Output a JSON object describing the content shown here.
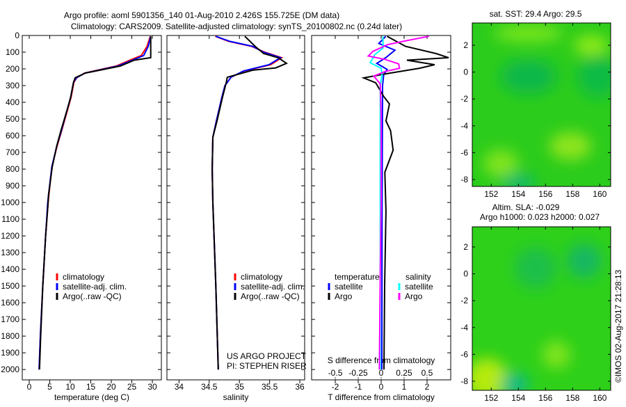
{
  "title": {
    "line1": "Argo profile: aoml 5901356_140 01-Aug-2010 2.426S 155.725E (DM data)",
    "line2": "Climatology: CARS2009. Satellite-adjusted climatology: synTS_20100802.nc (0.24d later)"
  },
  "colors": {
    "climatology": "#ff0000",
    "satellite": "#0000ff",
    "argo": "#000000",
    "sal_satellite": "#00ffff",
    "sal_argo": "#ff00ff"
  },
  "depth_ticks": [
    "0",
    "100",
    "200",
    "300",
    "400",
    "500",
    "600",
    "700",
    "800",
    "900",
    "1000",
    "1100",
    "1200",
    "1300",
    "1400",
    "1500",
    "1600",
    "1700",
    "1800",
    "1900",
    "2000"
  ],
  "chart_data": [
    {
      "type": "line",
      "xlabel": "temperature (deg C)",
      "ylabel": "depth",
      "xlim": [
        -1.7,
        32.2
      ],
      "ylim": [
        2062,
        0
      ],
      "xticks": [
        "0",
        "5",
        "10",
        "15",
        "20",
        "25",
        "30"
      ],
      "xtick_values": [
        0,
        5,
        10,
        15,
        20,
        25,
        30
      ],
      "legend": [
        "climatology",
        "satellite-adj. clim.",
        "Argo(..raw -QC)"
      ],
      "series": [
        {
          "name": "climatology",
          "color": "#ff0000",
          "points": [
            [
              5,
              29.5
            ],
            [
              65,
              28.7
            ],
            [
              120,
              27.3
            ],
            [
              148,
              24.5
            ],
            [
              183,
              21.2
            ],
            [
              225,
              13.5
            ],
            [
              253,
              11.6
            ],
            [
              280,
              10.9
            ],
            [
              370,
              10.2
            ],
            [
              440,
              9.4
            ],
            [
              580,
              7.8
            ],
            [
              662,
              6.8
            ],
            [
              787,
              5.5
            ],
            [
              954,
              4.8
            ],
            [
              1000,
              4.6
            ],
            [
              1200,
              4.0
            ],
            [
              1500,
              3.3
            ],
            [
              1800,
              2.7
            ],
            [
              2000,
              2.4
            ]
          ]
        },
        {
          "name": "satellite-adj. clim.",
          "color": "#0000ff",
          "points": [
            [
              5,
              29.6
            ],
            [
              65,
              29.0
            ],
            [
              120,
              27.9
            ],
            [
              148,
              25.1
            ],
            [
              183,
              21.6
            ],
            [
              225,
              13.6
            ],
            [
              253,
              11.5
            ],
            [
              280,
              10.8
            ],
            [
              370,
              10.1
            ],
            [
              440,
              9.3
            ],
            [
              580,
              7.7
            ],
            [
              662,
              6.7
            ],
            [
              787,
              5.5
            ],
            [
              954,
              4.7
            ],
            [
              1000,
              4.5
            ],
            [
              1200,
              4.0
            ],
            [
              1500,
              3.3
            ],
            [
              1800,
              2.7
            ],
            [
              2000,
              2.4
            ]
          ]
        },
        {
          "name": "Argo(..raw -QC)",
          "color": "#000000",
          "points": [
            [
              5,
              29.6
            ],
            [
              133,
              29.6
            ],
            [
              148,
              25.6
            ],
            [
              183,
              22.2
            ],
            [
              225,
              13.7
            ],
            [
              253,
              11.2
            ],
            [
              280,
              10.8
            ],
            [
              370,
              10.1
            ],
            [
              440,
              9.3
            ],
            [
              580,
              7.6
            ],
            [
              662,
              6.7
            ],
            [
              787,
              5.6
            ],
            [
              954,
              4.7
            ],
            [
              1000,
              4.6
            ],
            [
              1200,
              4.0
            ],
            [
              1500,
              3.3
            ],
            [
              1800,
              2.8
            ],
            [
              2000,
              2.5
            ]
          ]
        }
      ]
    },
    {
      "type": "line",
      "xlabel": "salinity",
      "ylabel": "depth",
      "xlim": [
        33.8,
        36.08
      ],
      "ylim": [
        2062,
        0
      ],
      "xticks": [
        "34",
        "34.5",
        "35",
        "35.5",
        "36"
      ],
      "xtick_values": [
        34,
        34.5,
        35,
        35.5,
        36
      ],
      "legend": [
        "climatology",
        "satellite-adj. clim.",
        "Argo(..raw -QC)"
      ],
      "annotation": [
        "US ARGO PROJECT",
        "PI: STEPHEN RISER"
      ],
      "series": [
        {
          "name": "climatology",
          "color": "#ff0000",
          "points": [
            [
              5,
              34.6
            ],
            [
              35,
              34.82
            ],
            [
              65,
              35.2
            ],
            [
              100,
              35.42
            ],
            [
              133,
              35.7
            ],
            [
              175,
              35.52
            ],
            [
              212,
              35.08
            ],
            [
              250,
              34.86
            ],
            [
              300,
              34.76
            ],
            [
              370,
              34.71
            ],
            [
              510,
              34.62
            ],
            [
              610,
              34.56
            ],
            [
              800,
              34.55
            ],
            [
              1000,
              34.56
            ],
            [
              1500,
              34.61
            ],
            [
              2000,
              34.65
            ]
          ]
        },
        {
          "name": "satellite-adj. clim.",
          "color": "#0000ff",
          "points": [
            [
              5,
              34.61
            ],
            [
              35,
              34.84
            ],
            [
              65,
              35.22
            ],
            [
              100,
              35.4
            ],
            [
              133,
              35.68
            ],
            [
              175,
              35.49
            ],
            [
              212,
              35.07
            ],
            [
              250,
              34.86
            ],
            [
              300,
              34.76
            ],
            [
              370,
              34.71
            ],
            [
              510,
              34.62
            ],
            [
              610,
              34.56
            ],
            [
              800,
              34.55
            ],
            [
              1000,
              34.56
            ],
            [
              1500,
              34.61
            ],
            [
              2000,
              34.65
            ]
          ]
        },
        {
          "name": "Argo(..raw -QC)",
          "color": "#000000",
          "points": [
            [
              5,
              35.09
            ],
            [
              65,
              35.26
            ],
            [
              108,
              35.4
            ],
            [
              133,
              35.64
            ],
            [
              167,
              35.78
            ],
            [
              194,
              35.6
            ],
            [
              208,
              35.22
            ],
            [
              250,
              34.8
            ],
            [
              285,
              34.78
            ],
            [
              370,
              34.72
            ],
            [
              510,
              34.63
            ],
            [
              610,
              34.56
            ],
            [
              800,
              34.55
            ],
            [
              1000,
              34.56
            ],
            [
              1500,
              34.61
            ],
            [
              2000,
              34.65
            ]
          ]
        }
      ]
    },
    {
      "type": "line",
      "xlabel": "T difference from climatology",
      "x2label": "S difference from climatology",
      "ylabel": "depth",
      "xlim": [
        -3.03,
        3.03
      ],
      "x2lim": [
        -0.758,
        0.758
      ],
      "ylim": [
        2062,
        0
      ],
      "xticks": [
        "-2",
        "-1",
        "0",
        "1",
        "2"
      ],
      "xtick_values": [
        -2,
        -1,
        0,
        1,
        2
      ],
      "x2ticks": [
        "-0.5",
        "-0.25",
        "0",
        "0.25",
        "0.5"
      ],
      "x2tick_values": [
        -0.5,
        -0.25,
        0,
        0.25,
        0.5
      ],
      "legend_headers": [
        "temperature",
        "salinity"
      ],
      "legend": [
        "satellite",
        "Argo",
        "satellite",
        "Argo"
      ],
      "series": [
        {
          "name": "T satellite",
          "axis": "T",
          "color": "#0000ff",
          "points": [
            [
              5,
              0.2
            ],
            [
              48,
              -0.1
            ],
            [
              88,
              0.6
            ],
            [
              133,
              0.2
            ],
            [
              167,
              -0.19
            ],
            [
              203,
              0.26
            ],
            [
              236,
              0.11
            ],
            [
              300,
              0.06
            ],
            [
              1000,
              0.04
            ],
            [
              2000,
              0.03
            ]
          ]
        },
        {
          "name": "T Argo",
          "axis": "T",
          "color": "#000000",
          "points": [
            [
              5,
              0.26
            ],
            [
              65,
              1.06
            ],
            [
              108,
              2.38
            ],
            [
              133,
              2.94
            ],
            [
              148,
              1.12
            ],
            [
              175,
              2.33
            ],
            [
              196,
              1.67
            ],
            [
              233,
              0.06
            ],
            [
              254,
              -0.76
            ],
            [
              283,
              -0.24
            ],
            [
              365,
              0.11
            ],
            [
              410,
              0.36
            ],
            [
              511,
              0.21
            ],
            [
              570,
              0.41
            ],
            [
              687,
              0.52
            ],
            [
              819,
              0.16
            ],
            [
              1053,
              0.21
            ],
            [
              1500,
              0.15
            ],
            [
              2000,
              0.12
            ]
          ]
        },
        {
          "name": "S satellite",
          "axis": "S",
          "color": "#00ffff",
          "points": [
            [
              5,
              0.02
            ],
            [
              75,
              0.02
            ],
            [
              115,
              -0.07
            ],
            [
              163,
              -0.12
            ],
            [
              196,
              0.0
            ],
            [
              236,
              0.01
            ],
            [
              300,
              -0.01
            ],
            [
              2000,
              -0.01
            ]
          ]
        },
        {
          "name": "S Argo",
          "axis": "S",
          "color": "#ff00ff",
          "points": [
            [
              5,
              0.52
            ],
            [
              35,
              0.24
            ],
            [
              55,
              0.07
            ],
            [
              95,
              -0.09
            ],
            [
              123,
              -0.14
            ],
            [
              143,
              0.04
            ],
            [
              170,
              0.19
            ],
            [
              196,
              0.2
            ],
            [
              216,
              0.04
            ],
            [
              243,
              -0.08
            ],
            [
              290,
              -0.01
            ],
            [
              500,
              0.0
            ],
            [
              1000,
              0.0
            ],
            [
              1400,
              -0.01
            ],
            [
              2000,
              -0.02
            ]
          ]
        }
      ]
    },
    {
      "type": "heatmap",
      "title": "sat. SST: 29.4  Argo: 29.5",
      "xlim": [
        150.6,
        160.8
      ],
      "ylim": [
        -8.5,
        3.66
      ],
      "xticks": [
        "152",
        "154",
        "156",
        "158",
        "160"
      ],
      "xtick_values": [
        152,
        154,
        156,
        158,
        160
      ],
      "yticks": [
        "2",
        "0",
        "-2",
        "-4",
        "-6",
        "-8"
      ],
      "ytick_values": [
        2,
        0,
        -2,
        -4,
        -6,
        -8
      ],
      "marker": {
        "lon": 155.725,
        "lat": -2.426
      }
    },
    {
      "type": "heatmap",
      "title": "Altim. SLA: -0.029",
      "subtitle": "Argo h1000: 0.023 h2000: 0.027",
      "xlim": [
        150.6,
        160.8
      ],
      "ylim": [
        -8.5,
        3.5
      ],
      "xticks": [
        "152",
        "154",
        "156",
        "158",
        "160"
      ],
      "xtick_values": [
        152,
        154,
        156,
        158,
        160
      ],
      "yticks": [
        "2",
        "0",
        "-2",
        "-4",
        "-6",
        "-8"
      ],
      "ytick_values": [
        2,
        0,
        -2,
        -4,
        -6,
        -8
      ],
      "marker": {
        "lon": 155.725,
        "lat": -2.426
      }
    }
  ],
  "copyright": "©IMOS 02-Aug-2017 21:28:13"
}
